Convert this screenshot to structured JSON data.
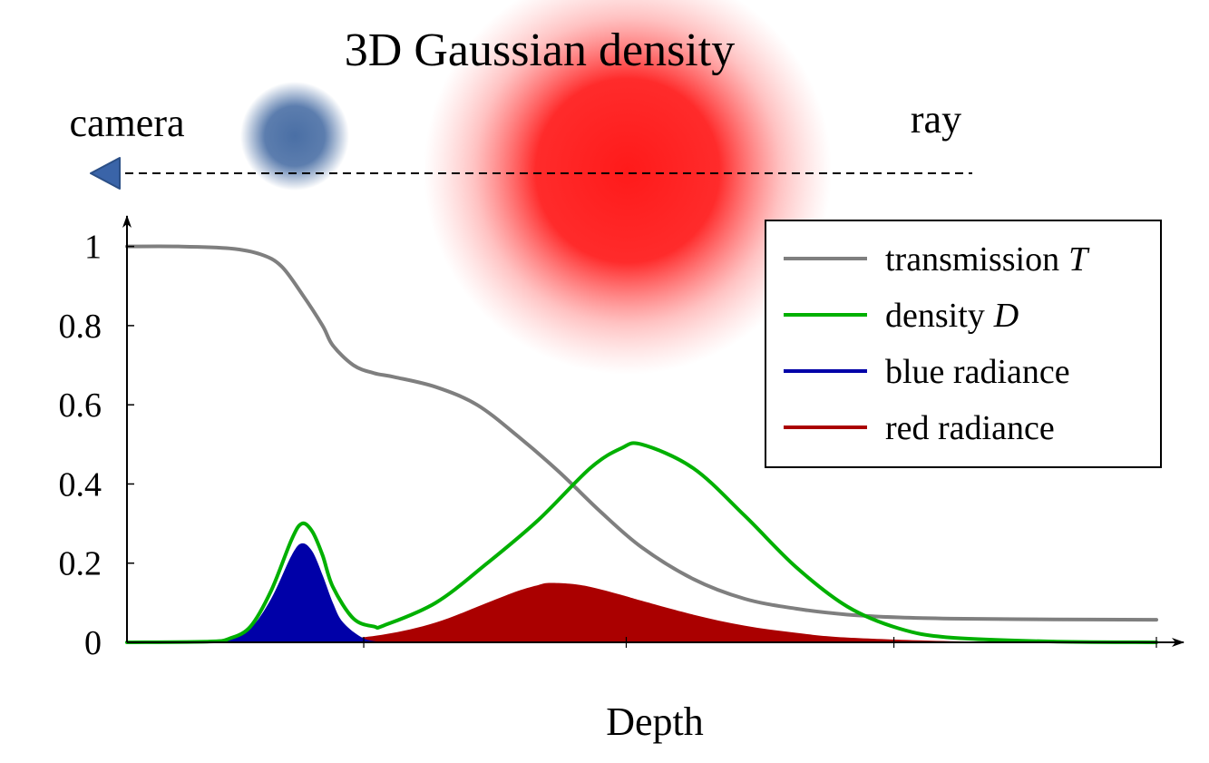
{
  "header": {
    "title": "3D Gaussian density",
    "camera_label": "camera",
    "ray_label": "ray"
  },
  "colors": {
    "transmission": "#7f7f7f",
    "density": "#00b000",
    "blue_radiance": "#0000a8",
    "red_radiance": "#aa0000",
    "blue_blob": "#4a6fa5",
    "red_blob": "#ff1a1a",
    "camera": "#3a64a8"
  },
  "chart_data": {
    "type": "area",
    "xlabel": "Depth",
    "ylabel": "",
    "xlim": [
      0,
      1
    ],
    "ylim": [
      0,
      1.1
    ],
    "yticks": [
      0,
      0.2,
      0.4,
      0.6,
      0.8,
      1
    ],
    "ytick_labels": [
      "0",
      "0.2",
      "0.4",
      "0.6",
      "0.8",
      "1"
    ],
    "xticks": [
      0.23,
      0.485,
      0.745,
      1.0
    ],
    "grid": false,
    "legend": {
      "placement": "top-right",
      "entries": [
        {
          "key": "transmission",
          "label": "transmission",
          "symbol": "T"
        },
        {
          "key": "density",
          "label": "density",
          "symbol": "D"
        },
        {
          "key": "blue_radiance",
          "label": "blue radiance",
          "symbol": ""
        },
        {
          "key": "red_radiance",
          "label": "red radiance",
          "symbol": ""
        }
      ]
    },
    "series": [
      {
        "key": "transmission",
        "style": "line",
        "x": [
          0,
          0.05,
          0.1,
          0.13,
          0.15,
          0.17,
          0.19,
          0.2,
          0.22,
          0.24,
          0.26,
          0.3,
          0.34,
          0.38,
          0.42,
          0.46,
          0.5,
          0.55,
          0.6,
          0.65,
          0.7,
          0.75,
          0.8,
          0.9,
          1.0
        ],
        "y": [
          1.0,
          1.0,
          0.995,
          0.98,
          0.95,
          0.88,
          0.8,
          0.75,
          0.7,
          0.68,
          0.67,
          0.645,
          0.6,
          0.52,
          0.43,
          0.33,
          0.24,
          0.16,
          0.11,
          0.085,
          0.07,
          0.063,
          0.06,
          0.058,
          0.057
        ]
      },
      {
        "key": "density",
        "style": "line",
        "x": [
          0,
          0.08,
          0.1,
          0.12,
          0.14,
          0.16,
          0.17,
          0.18,
          0.19,
          0.2,
          0.22,
          0.24,
          0.25,
          0.3,
          0.35,
          0.4,
          0.45,
          0.48,
          0.5,
          0.55,
          0.6,
          0.65,
          0.7,
          0.75,
          0.8,
          0.9,
          1.0
        ],
        "y": [
          0,
          0.002,
          0.01,
          0.04,
          0.13,
          0.26,
          0.3,
          0.28,
          0.22,
          0.14,
          0.06,
          0.04,
          0.043,
          0.1,
          0.2,
          0.31,
          0.44,
          0.49,
          0.5,
          0.44,
          0.32,
          0.19,
          0.09,
          0.035,
          0.012,
          0.002,
          0
        ]
      },
      {
        "key": "blue_radiance",
        "style": "area",
        "x": [
          0,
          0.08,
          0.1,
          0.12,
          0.14,
          0.16,
          0.17,
          0.18,
          0.19,
          0.2,
          0.21,
          0.23,
          0.25
        ],
        "y": [
          0,
          0.002,
          0.01,
          0.035,
          0.11,
          0.22,
          0.25,
          0.23,
          0.17,
          0.1,
          0.05,
          0.01,
          0
        ]
      },
      {
        "key": "red_radiance",
        "style": "area",
        "x": [
          0,
          0.1,
          0.2,
          0.25,
          0.3,
          0.35,
          0.38,
          0.4,
          0.41,
          0.43,
          0.45,
          0.48,
          0.5,
          0.55,
          0.6,
          0.65,
          0.7,
          0.8,
          0.9,
          1.0
        ],
        "y": [
          0,
          0.002,
          0.008,
          0.02,
          0.05,
          0.1,
          0.13,
          0.145,
          0.15,
          0.148,
          0.14,
          0.12,
          0.105,
          0.07,
          0.042,
          0.024,
          0.012,
          0.003,
          0.001,
          0
        ]
      }
    ]
  }
}
